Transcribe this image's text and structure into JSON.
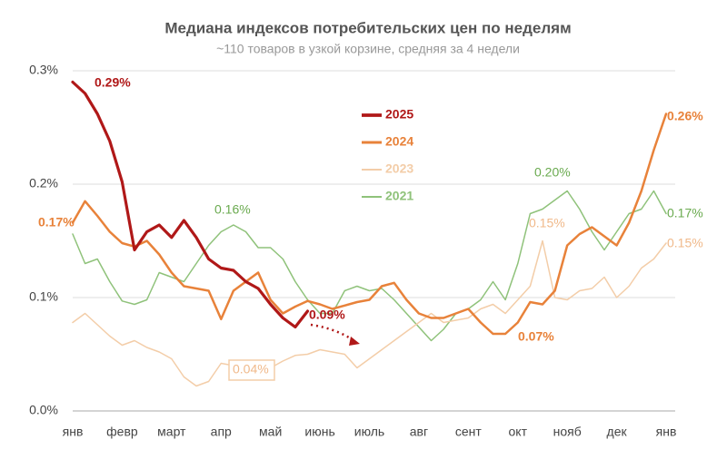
{
  "chart_data": {
    "type": "line",
    "title": "Медиана индексов потребительских цен по неделям",
    "subtitle": "~110 товаров в узкой корзине, средняя за 4 недели",
    "x": [
      0,
      0.25,
      0.5,
      0.75,
      1,
      1.25,
      1.5,
      1.75,
      2,
      2.25,
      2.5,
      2.75,
      3,
      3.25,
      3.5,
      3.75,
      4,
      4.25,
      4.5,
      4.75,
      5,
      5.25,
      5.5,
      5.75,
      6,
      6.25,
      6.5,
      6.75,
      7,
      7.25,
      7.5,
      7.75,
      8,
      8.25,
      8.5,
      8.75,
      9,
      9.25,
      9.5,
      9.75,
      10,
      10.25,
      10.5,
      10.75,
      11,
      11.25,
      11.5,
      11.75,
      12
    ],
    "xlim": [
      0,
      12
    ],
    "xticks": [
      {
        "value": 0,
        "label": "янв"
      },
      {
        "value": 1,
        "label": "февр"
      },
      {
        "value": 2,
        "label": "март"
      },
      {
        "value": 3,
        "label": "апр"
      },
      {
        "value": 4,
        "label": "май"
      },
      {
        "value": 5,
        "label": "июнь"
      },
      {
        "value": 6,
        "label": "июль"
      },
      {
        "value": 7,
        "label": "авг"
      },
      {
        "value": 8,
        "label": "сент"
      },
      {
        "value": 9,
        "label": "окт"
      },
      {
        "value": 10,
        "label": "нояб"
      },
      {
        "value": 11,
        "label": "дек"
      },
      {
        "value": 12,
        "label": "янв"
      }
    ],
    "ylim": [
      0,
      0.3
    ],
    "yticks": [
      {
        "value": 0,
        "label": "0.0%"
      },
      {
        "value": 0.1,
        "label": "0.1%"
      },
      {
        "value": 0.2,
        "label": "0.2%"
      },
      {
        "value": 0.3,
        "label": "0.3%"
      }
    ],
    "grid": true,
    "series": [
      {
        "name": "2021",
        "color": "#8fc27a",
        "values": [
          0.156,
          0.13,
          0.134,
          0.114,
          0.097,
          0.094,
          0.098,
          0.122,
          0.118,
          0.114,
          0.13,
          0.146,
          0.158,
          0.164,
          0.158,
          0.144,
          0.144,
          0.134,
          0.114,
          0.098,
          0.086,
          0.086,
          0.106,
          0.11,
          0.106,
          0.108,
          0.098,
          0.086,
          0.074,
          0.062,
          0.072,
          0.086,
          0.09,
          0.098,
          0.114,
          0.098,
          0.13,
          0.174,
          0.178,
          0.186,
          0.194,
          0.178,
          0.158,
          0.142,
          0.158,
          0.174,
          0.178,
          0.194,
          0.174
        ]
      },
      {
        "name": "2023",
        "color": "#f3cda8",
        "values": [
          0.078,
          0.086,
          0.076,
          0.066,
          0.058,
          0.062,
          0.056,
          0.052,
          0.046,
          0.03,
          0.022,
          0.026,
          0.042,
          0.04,
          0.038,
          0.034,
          0.038,
          0.044,
          0.049,
          0.05,
          0.054,
          0.052,
          0.05,
          0.038,
          0.046,
          0.054,
          0.062,
          0.07,
          0.078,
          0.086,
          0.078,
          0.08,
          0.082,
          0.09,
          0.094,
          0.086,
          0.098,
          0.11,
          0.15,
          0.1,
          0.098,
          0.106,
          0.108,
          0.118,
          0.1,
          0.11,
          0.126,
          0.134,
          0.148
        ]
      },
      {
        "name": "2024",
        "color": "#e8823a",
        "values": [
          0.166,
          0.185,
          0.172,
          0.158,
          0.148,
          0.145,
          0.15,
          0.138,
          0.122,
          0.11,
          0.108,
          0.106,
          0.081,
          0.106,
          0.114,
          0.122,
          0.098,
          0.086,
          0.092,
          0.097,
          0.094,
          0.09,
          0.093,
          0.096,
          0.098,
          0.11,
          0.113,
          0.098,
          0.086,
          0.082,
          0.082,
          0.086,
          0.09,
          0.078,
          0.068,
          0.068,
          0.078,
          0.096,
          0.094,
          0.106,
          0.146,
          0.156,
          0.162,
          0.154,
          0.146,
          0.166,
          0.194,
          0.23,
          0.262
        ]
      },
      {
        "name": "2025",
        "color": "#b01818",
        "values": [
          0.29,
          0.28,
          0.262,
          0.238,
          0.202,
          0.142,
          0.158,
          0.164,
          0.153,
          0.168,
          0.153,
          0.134,
          0.126,
          0.124,
          0.114,
          0.108,
          0.094,
          0.082,
          0.074,
          0.088,
          null,
          null,
          null,
          null,
          null,
          null,
          null,
          null,
          null,
          null,
          null,
          null,
          null,
          null,
          null,
          null,
          null,
          null,
          null,
          null,
          null,
          null,
          null,
          null,
          null,
          null,
          null,
          null,
          null
        ]
      }
    ],
    "legend_order": [
      3,
      2,
      1,
      0
    ],
    "annotations": [
      {
        "text": "0.29%",
        "color": "#b01818"
      },
      {
        "text": "0.17%",
        "color": "#e8823a"
      },
      {
        "text": "0.16%",
        "color": "#6aaa4f"
      },
      {
        "text": "0.09%",
        "color": "#b01818"
      },
      {
        "text": "0.04%",
        "color": "#f0b98a"
      },
      {
        "text": "0.07%",
        "color": "#e8823a"
      },
      {
        "text": "0.20%",
        "color": "#6aaa4f"
      },
      {
        "text": "0.15%",
        "color": "#f0b98a"
      },
      {
        "text": "0.26%",
        "color": "#e8823a"
      },
      {
        "text": "0.17%",
        "color": "#6aaa4f"
      },
      {
        "text": "0.15%",
        "color": "#f0b98a"
      }
    ]
  }
}
